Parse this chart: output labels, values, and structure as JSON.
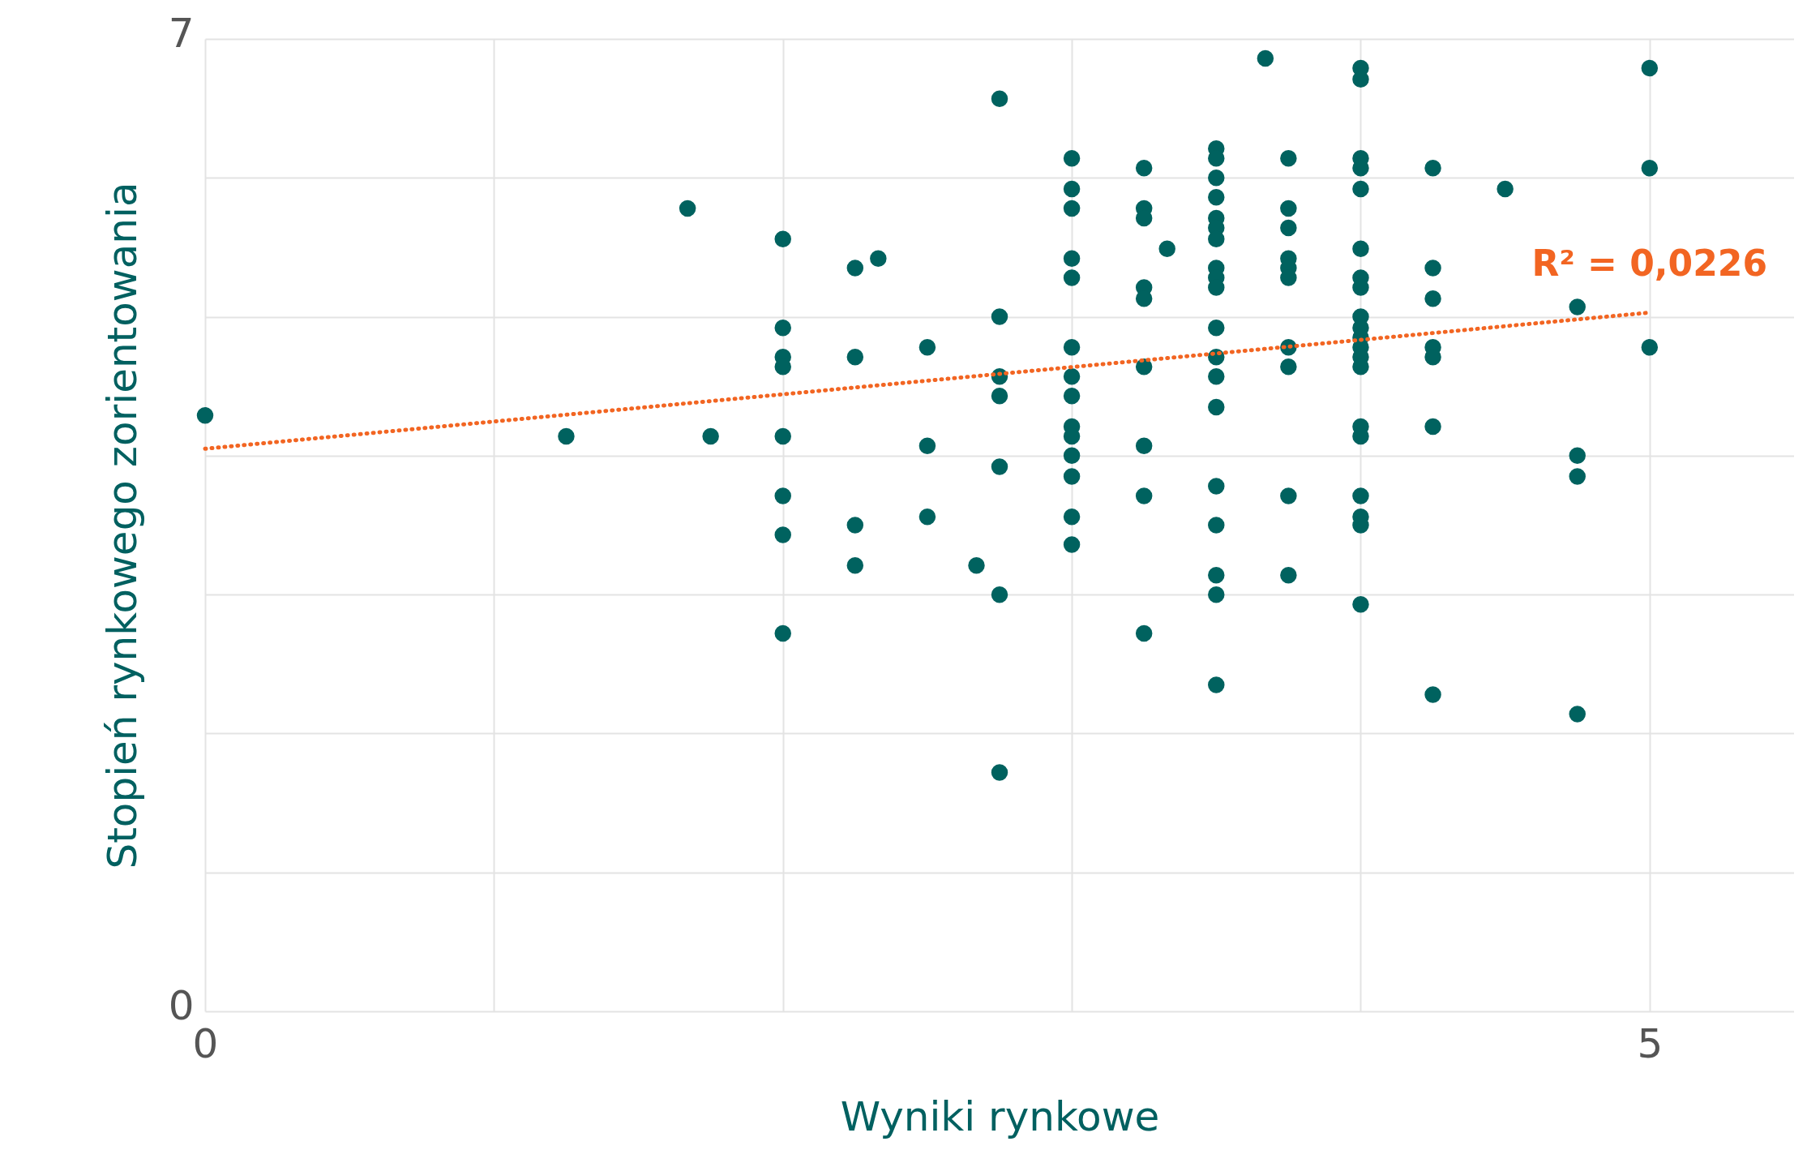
{
  "chart_data": {
    "type": "scatter",
    "xlabel": "Wyniki rynkowe",
    "ylabel": "Stopień rynkowego zorientowania",
    "xlim": [
      0,
      5.5
    ],
    "ylim": [
      0,
      7
    ],
    "xticks": [
      0,
      {
        "value": 1,
        "label": null
      },
      {
        "value": 2,
        "label": null
      },
      {
        "value": 3,
        "label": null
      },
      {
        "value": 4,
        "label": null
      },
      5
    ],
    "yticks": [
      0,
      {
        "value": 1,
        "label": null
      },
      {
        "value": 2,
        "label": null
      },
      {
        "value": 3,
        "label": null
      },
      {
        "value": 4,
        "label": null
      },
      {
        "value": 5,
        "label": null
      },
      {
        "value": 6,
        "label": null
      },
      7
    ],
    "grid": true,
    "annotations": [
      {
        "text": "R² = 0,0226",
        "x": 5,
        "y": 5.03
      }
    ],
    "series": [
      {
        "type": "scatter",
        "marker": "circle",
        "color": "#00625f",
        "x": [
          0,
          1.25,
          1.67,
          1.75,
          2,
          2,
          2,
          2,
          2,
          2,
          2,
          2,
          2.25,
          2.25,
          2.25,
          2.25,
          2.33,
          2.5,
          2.5,
          2.5,
          2.67,
          2.75,
          2.75,
          2.75,
          2.75,
          2.75,
          2.75,
          2.75,
          3,
          3,
          3,
          3,
          3,
          3,
          3,
          3,
          3,
          3,
          3,
          3,
          3,
          3,
          3.25,
          3.25,
          3.25,
          3.25,
          3.25,
          3.25,
          3.25,
          3.25,
          3.25,
          3.33,
          3.5,
          3.5,
          3.5,
          3.5,
          3.5,
          3.5,
          3.5,
          3.5,
          3.5,
          3.5,
          3.5,
          3.5,
          3.5,
          3.5,
          3.5,
          3.5,
          3.5,
          3.5,
          3.5,
          3.67,
          3.75,
          3.75,
          3.75,
          3.75,
          3.75,
          3.75,
          3.75,
          3.75,
          3.75,
          3.75,
          4,
          4,
          4,
          4,
          4,
          4,
          4,
          4,
          4,
          4,
          4,
          4,
          4,
          4,
          4,
          4,
          4,
          4,
          4,
          4,
          4.25,
          4.25,
          4.25,
          4.25,
          4.25,
          4.25,
          4.25,
          4.5,
          4.75,
          4.75,
          4.75,
          4.75,
          5,
          5,
          5
        ],
        "values": [
          4.29,
          4.14,
          5.78,
          4.14,
          5.56,
          4.92,
          4.71,
          4.64,
          4.14,
          3.71,
          3.43,
          2.72,
          5.35,
          4.71,
          3.5,
          3.21,
          5.42,
          4.78,
          4.07,
          3.56,
          3.21,
          6.57,
          5.0,
          4.57,
          4.43,
          3.92,
          3.0,
          1.72,
          6.14,
          5.92,
          5.78,
          5.42,
          5.28,
          4.78,
          4.57,
          4.43,
          4.21,
          4.14,
          4.0,
          3.85,
          3.56,
          3.36,
          6.07,
          5.78,
          5.71,
          5.21,
          5.13,
          4.64,
          4.07,
          3.71,
          2.72,
          5.49,
          6.21,
          6.14,
          6.0,
          5.86,
          5.71,
          5.64,
          5.56,
          5.35,
          5.28,
          5.21,
          4.92,
          4.71,
          4.57,
          4.35,
          3.78,
          3.5,
          3.14,
          3.0,
          2.35,
          6.86,
          6.14,
          5.78,
          5.64,
          5.42,
          5.35,
          5.28,
          4.78,
          4.64,
          3.71,
          3.14,
          6.79,
          6.71,
          6.14,
          6.07,
          5.92,
          5.49,
          5.28,
          5.21,
          5.0,
          4.92,
          4.85,
          4.78,
          4.71,
          4.64,
          4.21,
          4.14,
          3.71,
          3.56,
          3.5,
          2.93,
          6.07,
          5.35,
          5.13,
          4.78,
          4.71,
          4.21,
          2.28,
          5.92,
          5.07,
          4.0,
          3.85,
          2.14,
          6.79,
          6.07,
          4.78
        ]
      },
      {
        "type": "line",
        "color": "#f26522",
        "line_style": "dotted",
        "x": [
          0,
          5
        ],
        "values": [
          4.05,
          5.03
        ]
      }
    ]
  }
}
